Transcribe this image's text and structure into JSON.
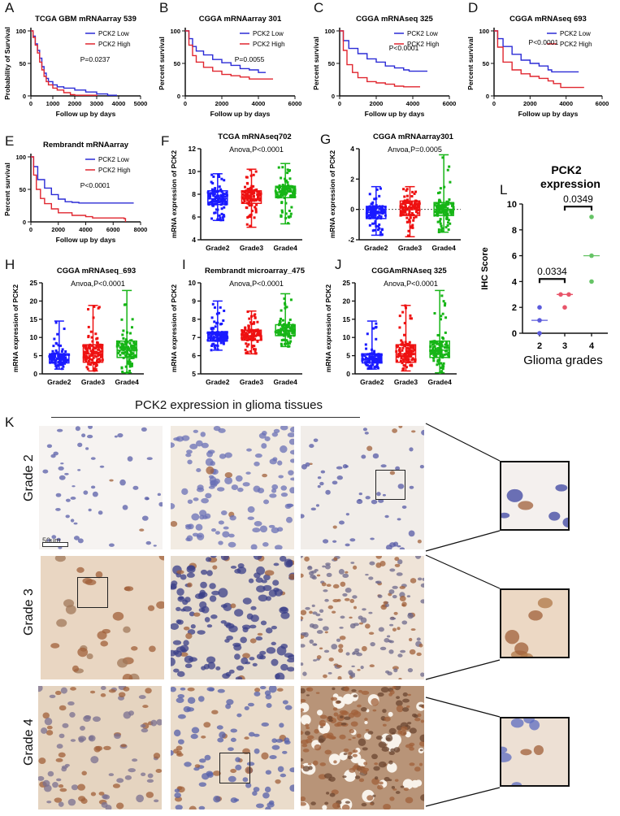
{
  "figure": {
    "panel_labels": [
      "A",
      "B",
      "C",
      "D",
      "E",
      "F",
      "G",
      "H",
      "I",
      "J",
      "K",
      "L"
    ]
  },
  "chart_data": [
    {
      "id": "A",
      "type": "line",
      "title": "TCGA GBM mRNAarray 539",
      "xlabel": "Follow up by days",
      "ylabel": "Probability of Survival",
      "xlim": [
        0,
        5000
      ],
      "ylim": [
        0,
        100
      ],
      "xticks": [
        0,
        1000,
        2000,
        3000,
        4000,
        5000
      ],
      "yticks": [
        0,
        50,
        100
      ],
      "legend": [
        "PCK2 Low",
        "PCK2 High"
      ],
      "annotation": "P=0.0237",
      "series": [
        {
          "name": "PCK2 Low",
          "color": "#2b2bd6",
          "x": [
            0,
            100,
            200,
            300,
            400,
            500,
            600,
            700,
            800,
            1000,
            1200,
            1500,
            2000,
            2500,
            3000,
            3500,
            3900
          ],
          "y": [
            100,
            92,
            80,
            70,
            58,
            45,
            35,
            27,
            22,
            17,
            14,
            12,
            9,
            6,
            3,
            1,
            0
          ]
        },
        {
          "name": "PCK2 High",
          "color": "#e0262f",
          "x": [
            0,
            100,
            200,
            300,
            400,
            500,
            600,
            700,
            800,
            1000,
            1200,
            1500,
            1800,
            2000,
            3000
          ],
          "y": [
            100,
            90,
            78,
            66,
            52,
            40,
            30,
            22,
            17,
            12,
            9,
            5,
            2,
            1,
            0
          ]
        }
      ]
    },
    {
      "id": "B",
      "type": "line",
      "title": "CGGA mRNAarray 301",
      "xlabel": "Follow up by days",
      "ylabel": "Percent survival",
      "xlim": [
        0,
        6000
      ],
      "ylim": [
        0,
        100
      ],
      "xticks": [
        0,
        2000,
        4000,
        6000
      ],
      "yticks": [
        0,
        50,
        100
      ],
      "legend": [
        "PCK2 Low",
        "PCK2 High"
      ],
      "annotation": "P=0.0055",
      "series": [
        {
          "name": "PCK2 Low",
          "color": "#2b2bd6",
          "x": [
            0,
            200,
            400,
            600,
            1000,
            1500,
            2000,
            2500,
            3000,
            3500,
            4000,
            4400
          ],
          "y": [
            100,
            88,
            76,
            69,
            63,
            56,
            51,
            47,
            42,
            40,
            36,
            36
          ]
        },
        {
          "name": "PCK2 High",
          "color": "#e0262f",
          "x": [
            0,
            200,
            400,
            600,
            1000,
            1500,
            2000,
            2500,
            3000,
            3500,
            4000,
            4800
          ],
          "y": [
            100,
            78,
            62,
            52,
            44,
            38,
            33,
            31,
            29,
            26,
            26,
            26
          ]
        }
      ]
    },
    {
      "id": "C",
      "type": "line",
      "title": "CGGA mRNAseq 325",
      "xlabel": "Follow up by days",
      "ylabel": "Percent survival",
      "xlim": [
        0,
        6000
      ],
      "ylim": [
        0,
        100
      ],
      "xticks": [
        0,
        2000,
        4000,
        6000
      ],
      "yticks": [
        0,
        50,
        100
      ],
      "legend": [
        "PCK2 Low",
        "PCK2 High"
      ],
      "annotation": "P<0.0001",
      "series": [
        {
          "name": "PCK2 Low",
          "color": "#2b2bd6",
          "x": [
            0,
            200,
            500,
            1000,
            1500,
            2000,
            2500,
            3000,
            3500,
            3800,
            4800
          ],
          "y": [
            100,
            85,
            73,
            65,
            57,
            52,
            46,
            43,
            40,
            38,
            38
          ]
        },
        {
          "name": "PCK2 High",
          "color": "#e0262f",
          "x": [
            0,
            200,
            400,
            700,
            1000,
            1500,
            2000,
            2500,
            3000,
            3500,
            4400
          ],
          "y": [
            100,
            70,
            48,
            36,
            28,
            22,
            20,
            18,
            15,
            14,
            14
          ]
        }
      ]
    },
    {
      "id": "D",
      "type": "line",
      "title": "CGGA mRNAseq 693",
      "xlabel": "Follow up by days",
      "ylabel": "Percent survival",
      "xlim": [
        0,
        6000
      ],
      "ylim": [
        0,
        100
      ],
      "xticks": [
        0,
        2000,
        4000,
        6000
      ],
      "yticks": [
        0,
        50,
        100
      ],
      "legend": [
        "PCK2 Low",
        "PCK2 High"
      ],
      "annotation": "P<0.0001",
      "series": [
        {
          "name": "PCK2 Low",
          "color": "#2b2bd6",
          "x": [
            0,
            200,
            500,
            1000,
            1500,
            2000,
            2500,
            3000,
            3200,
            4700
          ],
          "y": [
            100,
            88,
            76,
            64,
            55,
            50,
            46,
            40,
            37,
            37
          ]
        },
        {
          "name": "PCK2 High",
          "color": "#e0262f",
          "x": [
            0,
            200,
            500,
            1000,
            1500,
            2000,
            2500,
            3000,
            3300,
            3700,
            5000
          ],
          "y": [
            100,
            75,
            52,
            40,
            34,
            30,
            27,
            23,
            19,
            13,
            13
          ]
        }
      ]
    },
    {
      "id": "E",
      "type": "line",
      "title": "Rembrandt mRNAarray",
      "xlabel": "Follow up by days",
      "ylabel": "Percent survival",
      "xlim": [
        0,
        8000
      ],
      "ylim": [
        0,
        100
      ],
      "xticks": [
        0,
        2000,
        4000,
        6000,
        8000
      ],
      "yticks": [
        0,
        50,
        100
      ],
      "legend": [
        "PCK2 Low",
        "PCK2 High"
      ],
      "annotation": "P<0.0001",
      "series": [
        {
          "name": "PCK2 Low",
          "color": "#2b2bd6",
          "x": [
            0,
            200,
            500,
            1000,
            1500,
            2000,
            2500,
            3000,
            3500,
            7500
          ],
          "y": [
            100,
            85,
            65,
            52,
            42,
            35,
            31,
            30,
            29,
            29
          ]
        },
        {
          "name": "PCK2 High",
          "color": "#e0262f",
          "x": [
            0,
            200,
            400,
            700,
            1000,
            1500,
            2000,
            3000,
            4000,
            4500,
            6800,
            6900
          ],
          "y": [
            100,
            72,
            50,
            36,
            28,
            20,
            14,
            10,
            8,
            6,
            5,
            0
          ]
        }
      ]
    },
    {
      "id": "F",
      "type": "box",
      "title": "TCGA mRNAseq702",
      "annotation": "Anova,P<0.0001",
      "ylabel": "mRNA expression of PCK2",
      "ylim": [
        4,
        12
      ],
      "yticks": [
        4,
        6,
        8,
        10,
        12
      ],
      "categories": [
        "Grade2",
        "Grade3",
        "Grade4"
      ],
      "colors": [
        "#1a1aff",
        "#ee1111",
        "#16b516"
      ],
      "boxes": [
        {
          "min": 5.7,
          "q1": 7.1,
          "median": 7.6,
          "q3": 8.3,
          "max": 9.8
        },
        {
          "min": 5.1,
          "q1": 7.2,
          "median": 7.6,
          "q3": 8.3,
          "max": 10.2
        },
        {
          "min": 5.4,
          "q1": 7.7,
          "median": 8.2,
          "q3": 8.7,
          "max": 10.7
        }
      ]
    },
    {
      "id": "G",
      "type": "box",
      "title": "CGGA mRNAarray301",
      "annotation": "Anvoa,P=0.0005",
      "ylabel": "mRNA expression of PCK2",
      "ylim": [
        -2,
        4
      ],
      "yticks": [
        -2,
        0,
        2,
        4
      ],
      "reference_line": 0,
      "categories": [
        "Grade2",
        "Grade3",
        "Grade4"
      ],
      "colors": [
        "#1a1aff",
        "#ee1111",
        "#16b516"
      ],
      "boxes": [
        {
          "min": -1.7,
          "q1": -0.6,
          "median": -0.2,
          "q3": 0.2,
          "max": 1.5
        },
        {
          "min": -1.8,
          "q1": -0.4,
          "median": 0.1,
          "q3": 0.55,
          "max": 1.5
        },
        {
          "min": -1.5,
          "q1": -0.4,
          "median": 0.0,
          "q3": 0.45,
          "max": 3.6
        }
      ]
    },
    {
      "id": "H",
      "type": "box",
      "title": "CGGA mRNAseq_693",
      "annotation": "Anvoa,P<0.0001",
      "ylabel": "mRNA expression of PCK2",
      "ylim": [
        0,
        25
      ],
      "yticks": [
        0,
        5,
        10,
        15,
        20,
        25
      ],
      "categories": [
        "Grade2",
        "Grade3",
        "Grade4"
      ],
      "colors": [
        "#1a1aff",
        "#ee1111",
        "#16b516"
      ],
      "boxes": [
        {
          "min": 1.3,
          "q1": 3.0,
          "median": 4.0,
          "q3": 5.5,
          "max": 14.5
        },
        {
          "min": 0.8,
          "q1": 3.2,
          "median": 5.5,
          "q3": 8.0,
          "max": 18.8
        },
        {
          "min": 0.3,
          "q1": 4.5,
          "median": 6.5,
          "q3": 9.0,
          "max": 22.9
        }
      ]
    },
    {
      "id": "I",
      "type": "box",
      "title": "Rembrandt microarray_475",
      "annotation": "Anova,P<0.0001",
      "ylabel": "mRNA expression of PCK2",
      "ylim": [
        5,
        10
      ],
      "yticks": [
        5,
        6,
        7,
        8,
        9,
        10
      ],
      "categories": [
        "Grade2",
        "Grade3",
        "Grade4"
      ],
      "colors": [
        "#1a1aff",
        "#ee1111",
        "#16b516"
      ],
      "boxes": [
        {
          "min": 6.3,
          "q1": 6.8,
          "median": 7.0,
          "q3": 7.3,
          "max": 9.0
        },
        {
          "min": 6.1,
          "q1": 6.85,
          "median": 7.1,
          "q3": 7.4,
          "max": 8.45
        },
        {
          "min": 6.5,
          "q1": 7.1,
          "median": 7.4,
          "q3": 7.7,
          "max": 9.4
        }
      ]
    },
    {
      "id": "J",
      "type": "box",
      "title": "CGGAmRNAseq 325",
      "annotation": "Anova,P<0.0001",
      "ylabel": "mRNA expression of PCK2",
      "ylim": [
        0,
        25
      ],
      "yticks": [
        0,
        5,
        10,
        15,
        20,
        25
      ],
      "categories": [
        "Grade2",
        "Grade3",
        "Grade4"
      ],
      "colors": [
        "#1a1aff",
        "#ee1111",
        "#16b516"
      ],
      "boxes": [
        {
          "min": 1.3,
          "q1": 3.0,
          "median": 4.0,
          "q3": 5.5,
          "max": 14.5
        },
        {
          "min": 0.8,
          "q1": 3.2,
          "median": 5.5,
          "q3": 8.0,
          "max": 18.8
        },
        {
          "min": 0.3,
          "q1": 4.5,
          "median": 6.5,
          "q3": 9.0,
          "max": 22.9
        }
      ]
    },
    {
      "id": "L",
      "type": "scatter",
      "title": "PCK2 expression",
      "xlabel": "Glioma grades",
      "ylabel": "IHC Score",
      "ylim": [
        0,
        10
      ],
      "yticks": [
        0,
        2,
        4,
        6,
        8,
        10
      ],
      "categories": [
        "2",
        "3",
        "4"
      ],
      "colors": [
        "#5b5bdc",
        "#e8556a",
        "#66c466"
      ],
      "points": [
        [
          0,
          1,
          2
        ],
        [
          2,
          3,
          3
        ],
        [
          4,
          6,
          9
        ]
      ],
      "medians": [
        1,
        3,
        6
      ],
      "comparisons": [
        {
          "from": "2",
          "to": "3",
          "label": "0.0334",
          "y": 4.2
        },
        {
          "from": "3",
          "to": "4",
          "label": "0.0349",
          "y": 9.8
        }
      ]
    }
  ],
  "panel_k": {
    "title": "PCK2 expression in glioma tissues",
    "row_labels": [
      "Grade 2",
      "Grade 3",
      "Grade 4"
    ],
    "scale_bar": "50um"
  }
}
